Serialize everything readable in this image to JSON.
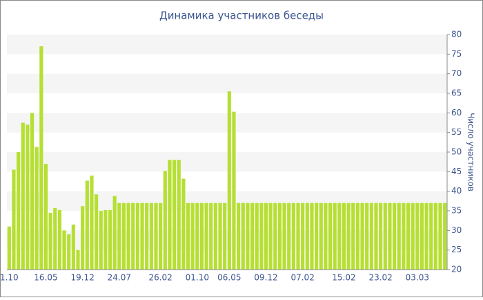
{
  "chart_data": {
    "type": "bar",
    "title": "Динамика участников беседы",
    "y_axis_label": "Число участников",
    "color": "#b6df34",
    "ylim": [
      20,
      80
    ],
    "yticks": [
      20,
      25,
      30,
      35,
      40,
      45,
      50,
      55,
      60,
      65,
      70,
      75,
      80
    ],
    "grid": "bands",
    "y_axis_side": "right",
    "categories": [
      "1.10",
      null,
      null,
      null,
      null,
      null,
      null,
      null,
      "16.05",
      null,
      null,
      null,
      null,
      null,
      null,
      null,
      "19.12",
      null,
      null,
      null,
      null,
      null,
      null,
      null,
      "24.07",
      null,
      null,
      null,
      null,
      null,
      null,
      null,
      null,
      "26.02",
      null,
      null,
      null,
      null,
      null,
      null,
      null,
      "01.10",
      null,
      null,
      null,
      null,
      null,
      null,
      "06.05",
      null,
      null,
      null,
      null,
      null,
      null,
      null,
      "09.12",
      null,
      null,
      null,
      null,
      null,
      null,
      null,
      "07.02",
      null,
      null,
      null,
      null,
      null,
      null,
      null,
      null,
      "15.02",
      null,
      null,
      null,
      null,
      null,
      null,
      null,
      "23.02",
      null,
      null,
      null,
      null,
      null,
      null,
      null,
      "03.03",
      null,
      null,
      null,
      null,
      null,
      null
    ],
    "values": [
      31,
      45.5,
      50,
      57.5,
      57,
      60,
      51.3,
      77,
      47,
      34.5,
      35.7,
      35.2,
      30,
      29,
      31.5,
      25,
      36.2,
      42.7,
      44,
      39.2,
      35,
      35.2,
      35.2,
      38.8,
      37,
      37,
      37,
      37,
      37,
      37,
      37,
      37,
      37,
      37,
      45.2,
      48,
      48,
      48,
      43.2,
      37,
      37,
      37,
      37,
      37,
      37,
      37,
      37,
      37,
      65.5,
      60.3,
      37,
      37,
      37,
      37,
      37,
      37,
      37,
      37,
      37,
      37,
      37,
      37,
      37,
      37,
      37,
      37,
      37,
      37,
      37,
      37,
      37,
      37,
      37,
      37,
      37,
      37,
      37,
      37,
      37,
      37,
      37,
      37,
      37,
      37,
      37,
      37,
      37,
      37,
      37,
      37,
      37,
      37,
      37,
      37,
      37,
      37
    ]
  }
}
